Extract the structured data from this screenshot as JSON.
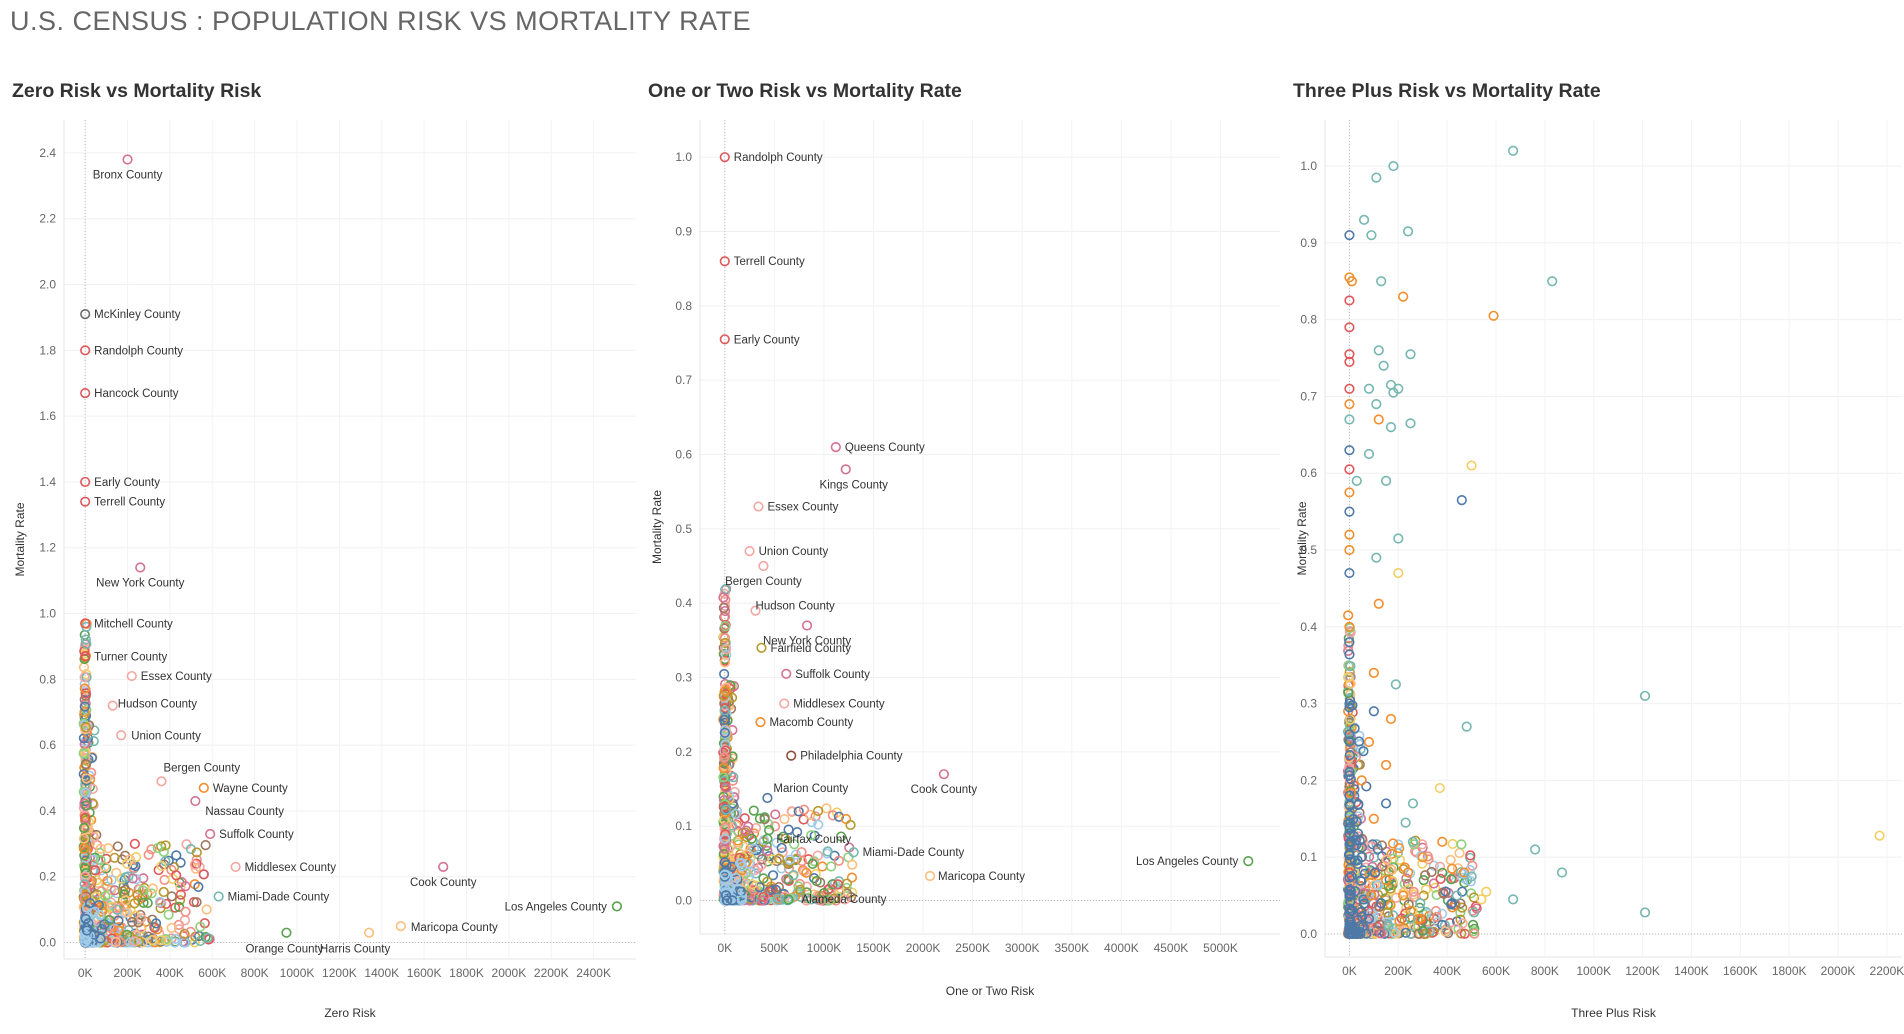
{
  "page": {
    "title": "U.S. CENSUS : POPULATION RISK VS MORTALITY RATE"
  },
  "colors": {
    "red": "#e15759",
    "pink": "#d37295",
    "lightpink": "#f4a6a1",
    "salmon": "#f28e84",
    "brown": "#9d7660",
    "green": "#59a14f",
    "lightgreen": "#8cd17d",
    "teal": "#76b7b2",
    "blue": "#4e79a7",
    "lightblue": "#a0cbe8",
    "orange": "#f28e2b",
    "lightorange": "#ffbe7d",
    "olive": "#b6992d",
    "yellow": "#f1ce63",
    "darkgray": "#6b6b6b",
    "darkbrown": "#8b4f3c"
  },
  "chart_data": [
    {
      "id": "zero",
      "type": "scatter",
      "title": "Zero Risk vs Mortality Risk",
      "xlabel": "Zero Risk",
      "ylabel": "Mortality Rate",
      "xlim": [
        -100000,
        2600000
      ],
      "ylim": [
        -0.05,
        2.5
      ],
      "xticks": [
        0,
        200000,
        400000,
        600000,
        800000,
        1000000,
        1200000,
        1400000,
        1600000,
        1800000,
        2000000,
        2200000,
        2400000
      ],
      "xtick_labels": [
        "0K",
        "200K",
        "400K",
        "600K",
        "800K",
        "1000K",
        "1200K",
        "1400K",
        "1600K",
        "1800K",
        "2000K",
        "2200K",
        "2400K"
      ],
      "yticks": [
        0,
        0.2,
        0.4,
        0.6,
        0.8,
        1.0,
        1.2,
        1.4,
        1.6,
        1.8,
        2.0,
        2.2,
        2.4
      ],
      "ytick_labels": [
        "0.0",
        "0.2",
        "0.4",
        "0.6",
        "0.8",
        "1.0",
        "1.2",
        "1.4",
        "1.6",
        "1.8",
        "2.0",
        "2.2",
        "2.4"
      ],
      "labeled_points": [
        {
          "name": "Bronx County",
          "x": 200000,
          "y": 2.38,
          "color": "pink"
        },
        {
          "name": "McKinley County",
          "x": 0,
          "y": 1.91,
          "color": "darkgray"
        },
        {
          "name": "Randolph County",
          "x": 0,
          "y": 1.8,
          "color": "red"
        },
        {
          "name": "Hancock County",
          "x": 0,
          "y": 1.67,
          "color": "red"
        },
        {
          "name": "Early County",
          "x": 0,
          "y": 1.4,
          "color": "red"
        },
        {
          "name": "Terrell County",
          "x": 0,
          "y": 1.34,
          "color": "red"
        },
        {
          "name": "New York County",
          "x": 260000,
          "y": 1.14,
          "color": "pink"
        },
        {
          "name": "Mitchell County",
          "x": 0,
          "y": 0.97,
          "color": "red"
        },
        {
          "name": "Turner County",
          "x": 0,
          "y": 0.87,
          "color": "red"
        },
        {
          "name": "Essex County",
          "x": 220000,
          "y": 0.81,
          "color": "lightpink"
        },
        {
          "name": "Hudson County",
          "x": 130000,
          "y": 0.72,
          "color": "lightpink"
        },
        {
          "name": "Union County",
          "x": 170000,
          "y": 0.63,
          "color": "lightpink"
        },
        {
          "name": "Bergen County",
          "x": 360000,
          "y": 0.49,
          "color": "lightpink"
        },
        {
          "name": "Wayne County",
          "x": 560000,
          "y": 0.47,
          "color": "orange"
        },
        {
          "name": "Nassau County",
          "x": 520000,
          "y": 0.43,
          "color": "pink"
        },
        {
          "name": "Suffolk County",
          "x": 590000,
          "y": 0.33,
          "color": "pink"
        },
        {
          "name": "Middlesex County",
          "x": 710000,
          "y": 0.23,
          "color": "lightpink"
        },
        {
          "name": "Miami-Dade County",
          "x": 630000,
          "y": 0.14,
          "color": "teal"
        },
        {
          "name": "Cook County",
          "x": 1690000,
          "y": 0.23,
          "color": "pink"
        },
        {
          "name": "Los Angeles County",
          "x": 2510000,
          "y": 0.11,
          "color": "green"
        },
        {
          "name": "Maricopa County",
          "x": 1490000,
          "y": 0.05,
          "color": "lightorange"
        },
        {
          "name": "Orange County",
          "x": 950000,
          "y": 0.03,
          "color": "green"
        },
        {
          "name": "Harris County",
          "x": 1340000,
          "y": 0.03,
          "color": "lightorange"
        }
      ]
    },
    {
      "id": "one",
      "type": "scatter",
      "title": "One or Two Risk vs  Mortality Rate",
      "xlabel": "One or Two Risk",
      "ylabel": "Mortality Rate",
      "xlim": [
        -250000,
        5600000
      ],
      "ylim": [
        -0.045,
        1.05
      ],
      "xticks": [
        0,
        500000,
        1000000,
        1500000,
        2000000,
        2500000,
        3000000,
        3500000,
        4000000,
        4500000,
        5000000
      ],
      "xtick_labels": [
        "0K",
        "500K",
        "1000K",
        "1500K",
        "2000K",
        "2500K",
        "3000K",
        "3500K",
        "4000K",
        "4500K",
        "5000K"
      ],
      "yticks": [
        0,
        0.1,
        0.2,
        0.3,
        0.4,
        0.5,
        0.6,
        0.7,
        0.8,
        0.9,
        1.0
      ],
      "ytick_labels": [
        "0.0",
        "0.1",
        "0.2",
        "0.3",
        "0.4",
        "0.5",
        "0.6",
        "0.7",
        "0.8",
        "0.9",
        "1.0"
      ],
      "labeled_points": [
        {
          "name": "Randolph County",
          "x": 0,
          "y": 1.0,
          "color": "red"
        },
        {
          "name": "Terrell County",
          "x": 0,
          "y": 0.86,
          "color": "red"
        },
        {
          "name": "Early County",
          "x": 0,
          "y": 0.755,
          "color": "red"
        },
        {
          "name": "Queens County",
          "x": 1120000,
          "y": 0.61,
          "color": "pink"
        },
        {
          "name": "Kings County",
          "x": 1220000,
          "y": 0.58,
          "color": "pink"
        },
        {
          "name": "Essex County",
          "x": 340000,
          "y": 0.53,
          "color": "lightpink"
        },
        {
          "name": "Union County",
          "x": 250000,
          "y": 0.47,
          "color": "lightpink"
        },
        {
          "name": "Bergen County",
          "x": 390000,
          "y": 0.45,
          "color": "lightpink"
        },
        {
          "name": "Hudson County",
          "x": 310000,
          "y": 0.39,
          "color": "lightpink"
        },
        {
          "name": "New York County",
          "x": 830000,
          "y": 0.37,
          "color": "pink"
        },
        {
          "name": "Fairfield County",
          "x": 370000,
          "y": 0.34,
          "color": "olive"
        },
        {
          "name": "Suffolk County",
          "x": 620000,
          "y": 0.305,
          "color": "pink"
        },
        {
          "name": "Middlesex County",
          "x": 600000,
          "y": 0.265,
          "color": "lightpink"
        },
        {
          "name": "Macomb County",
          "x": 360000,
          "y": 0.24,
          "color": "orange"
        },
        {
          "name": "Philadelphia County",
          "x": 670000,
          "y": 0.195,
          "color": "darkbrown"
        },
        {
          "name": "Marion County",
          "x": 430000,
          "y": 0.138,
          "color": "blue"
        },
        {
          "name": "Cook County",
          "x": 2210000,
          "y": 0.17,
          "color": "pink"
        },
        {
          "name": "Fairfax County",
          "x": 430000,
          "y": 0.083,
          "color": "green"
        },
        {
          "name": "Miami-Dade County",
          "x": 1300000,
          "y": 0.065,
          "color": "teal"
        },
        {
          "name": "Maricopa County",
          "x": 2070000,
          "y": 0.033,
          "color": "lightorange"
        },
        {
          "name": "Los Angeles County",
          "x": 5280000,
          "y": 0.053,
          "color": "green"
        },
        {
          "name": "Alameda County",
          "x": 1000000,
          "y": 0.01,
          "color": "green"
        }
      ]
    },
    {
      "id": "three",
      "type": "scatter",
      "title": "Three Plus Risk vs Mortality Rate",
      "xlabel": "Three Plus Risk",
      "ylabel": "Mortality Rate",
      "xlim": [
        -100000,
        2270000
      ],
      "ylim": [
        -0.03,
        1.06
      ],
      "xticks": [
        0,
        200000,
        400000,
        600000,
        800000,
        1000000,
        1200000,
        1400000,
        1600000,
        1800000,
        2000000,
        2200000
      ],
      "xtick_labels": [
        "0K",
        "200K",
        "400K",
        "600K",
        "800K",
        "1000K",
        "1200K",
        "1400K",
        "1600K",
        "1800K",
        "2000K",
        "2200K"
      ],
      "yticks": [
        0,
        0.1,
        0.2,
        0.3,
        0.4,
        0.5,
        0.6,
        0.7,
        0.8,
        0.9,
        1.0
      ],
      "ytick_labels": [
        "0.0",
        "0.1",
        "0.2",
        "0.3",
        "0.4",
        "0.5",
        "0.6",
        "0.7",
        "0.8",
        "0.9",
        "1.0"
      ],
      "labeled_points": [],
      "points": [
        {
          "x": 670000,
          "y": 1.02,
          "color": "teal"
        },
        {
          "x": 180000,
          "y": 1.0,
          "color": "teal"
        },
        {
          "x": 110000,
          "y": 0.985,
          "color": "teal"
        },
        {
          "x": 60000,
          "y": 0.93,
          "color": "teal"
        },
        {
          "x": 240000,
          "y": 0.915,
          "color": "teal"
        },
        {
          "x": 0,
          "y": 0.91,
          "color": "blue"
        },
        {
          "x": 90000,
          "y": 0.91,
          "color": "teal"
        },
        {
          "x": 0,
          "y": 0.855,
          "color": "orange"
        },
        {
          "x": 10000,
          "y": 0.85,
          "color": "orange"
        },
        {
          "x": 130000,
          "y": 0.85,
          "color": "teal"
        },
        {
          "x": 830000,
          "y": 0.85,
          "color": "teal"
        },
        {
          "x": 220000,
          "y": 0.83,
          "color": "orange"
        },
        {
          "x": 0,
          "y": 0.825,
          "color": "red"
        },
        {
          "x": 590000,
          "y": 0.805,
          "color": "orange"
        },
        {
          "x": 0,
          "y": 0.79,
          "color": "red"
        },
        {
          "x": 120000,
          "y": 0.76,
          "color": "teal"
        },
        {
          "x": 250000,
          "y": 0.755,
          "color": "teal"
        },
        {
          "x": 0,
          "y": 0.755,
          "color": "red"
        },
        {
          "x": 0,
          "y": 0.745,
          "color": "red"
        },
        {
          "x": 140000,
          "y": 0.74,
          "color": "teal"
        },
        {
          "x": 0,
          "y": 0.71,
          "color": "red"
        },
        {
          "x": 80000,
          "y": 0.71,
          "color": "teal"
        },
        {
          "x": 170000,
          "y": 0.715,
          "color": "teal"
        },
        {
          "x": 200000,
          "y": 0.71,
          "color": "teal"
        },
        {
          "x": 180000,
          "y": 0.705,
          "color": "teal"
        },
        {
          "x": 0,
          "y": 0.69,
          "color": "orange"
        },
        {
          "x": 110000,
          "y": 0.69,
          "color": "teal"
        },
        {
          "x": 0,
          "y": 0.67,
          "color": "teal"
        },
        {
          "x": 120000,
          "y": 0.67,
          "color": "orange"
        },
        {
          "x": 170000,
          "y": 0.66,
          "color": "teal"
        },
        {
          "x": 250000,
          "y": 0.665,
          "color": "teal"
        },
        {
          "x": 0,
          "y": 0.63,
          "color": "blue"
        },
        {
          "x": 80000,
          "y": 0.625,
          "color": "teal"
        },
        {
          "x": 500000,
          "y": 0.61,
          "color": "yellow"
        },
        {
          "x": 0,
          "y": 0.605,
          "color": "red"
        },
        {
          "x": 30000,
          "y": 0.59,
          "color": "teal"
        },
        {
          "x": 150000,
          "y": 0.59,
          "color": "teal"
        },
        {
          "x": 460000,
          "y": 0.565,
          "color": "blue"
        },
        {
          "x": 0,
          "y": 0.575,
          "color": "orange"
        },
        {
          "x": 0,
          "y": 0.55,
          "color": "blue"
        },
        {
          "x": 0,
          "y": 0.52,
          "color": "orange"
        },
        {
          "x": 200000,
          "y": 0.515,
          "color": "teal"
        },
        {
          "x": 0,
          "y": 0.5,
          "color": "orange"
        },
        {
          "x": 110000,
          "y": 0.49,
          "color": "teal"
        },
        {
          "x": 200000,
          "y": 0.47,
          "color": "yellow"
        },
        {
          "x": 0,
          "y": 0.47,
          "color": "blue"
        },
        {
          "x": 120000,
          "y": 0.43,
          "color": "orange"
        },
        {
          "x": 0,
          "y": 0.4,
          "color": "orange"
        },
        {
          "x": 0,
          "y": 0.38,
          "color": "blue"
        },
        {
          "x": 100000,
          "y": 0.34,
          "color": "orange"
        },
        {
          "x": 190000,
          "y": 0.325,
          "color": "teal"
        },
        {
          "x": 1210000,
          "y": 0.31,
          "color": "teal"
        },
        {
          "x": 0,
          "y": 0.3,
          "color": "blue"
        },
        {
          "x": 100000,
          "y": 0.29,
          "color": "blue"
        },
        {
          "x": 170000,
          "y": 0.28,
          "color": "orange"
        },
        {
          "x": 480000,
          "y": 0.27,
          "color": "teal"
        },
        {
          "x": 0,
          "y": 0.26,
          "color": "blue"
        },
        {
          "x": 80000,
          "y": 0.25,
          "color": "orange"
        },
        {
          "x": 150000,
          "y": 0.22,
          "color": "orange"
        },
        {
          "x": 50000,
          "y": 0.2,
          "color": "orange"
        },
        {
          "x": 370000,
          "y": 0.19,
          "color": "yellow"
        },
        {
          "x": 0,
          "y": 0.18,
          "color": "blue"
        },
        {
          "x": 150000,
          "y": 0.17,
          "color": "blue"
        },
        {
          "x": 260000,
          "y": 0.17,
          "color": "teal"
        },
        {
          "x": 100000,
          "y": 0.15,
          "color": "orange"
        },
        {
          "x": 230000,
          "y": 0.145,
          "color": "teal"
        },
        {
          "x": 260000,
          "y": 0.12,
          "color": "teal"
        },
        {
          "x": 380000,
          "y": 0.12,
          "color": "orange"
        },
        {
          "x": 760000,
          "y": 0.11,
          "color": "teal"
        },
        {
          "x": 300000,
          "y": 0.1,
          "color": "orange"
        },
        {
          "x": 50000,
          "y": 0.1,
          "color": "blue"
        },
        {
          "x": 2170000,
          "y": 0.128,
          "color": "yellow"
        },
        {
          "x": 420000,
          "y": 0.085,
          "color": "orange"
        },
        {
          "x": 470000,
          "y": 0.08,
          "color": "orange"
        },
        {
          "x": 500000,
          "y": 0.075,
          "color": "teal"
        },
        {
          "x": 870000,
          "y": 0.08,
          "color": "teal"
        },
        {
          "x": 240000,
          "y": 0.08,
          "color": "orange"
        },
        {
          "x": 150000,
          "y": 0.07,
          "color": "orange"
        },
        {
          "x": 560000,
          "y": 0.055,
          "color": "yellow"
        },
        {
          "x": 440000,
          "y": 0.05,
          "color": "teal"
        },
        {
          "x": 220000,
          "y": 0.05,
          "color": "orange"
        },
        {
          "x": 90000,
          "y": 0.05,
          "color": "orange"
        },
        {
          "x": 540000,
          "y": 0.045,
          "color": "yellow"
        },
        {
          "x": 670000,
          "y": 0.045,
          "color": "teal"
        },
        {
          "x": 420000,
          "y": 0.04,
          "color": "blue"
        },
        {
          "x": 290000,
          "y": 0.04,
          "color": "teal"
        },
        {
          "x": 130000,
          "y": 0.04,
          "color": "blue"
        },
        {
          "x": 250000,
          "y": 0.03,
          "color": "orange"
        },
        {
          "x": 510000,
          "y": 0.028,
          "color": "teal"
        },
        {
          "x": 1210000,
          "y": 0.028,
          "color": "teal"
        },
        {
          "x": 290000,
          "y": 0.02,
          "color": "orange"
        },
        {
          "x": 250000,
          "y": 0.02,
          "color": "teal"
        },
        {
          "x": 80000,
          "y": 0.02,
          "color": "blue"
        },
        {
          "x": 160000,
          "y": 0.01,
          "color": "teal"
        },
        {
          "x": 40000,
          "y": 0.01,
          "color": "blue"
        }
      ]
    }
  ]
}
